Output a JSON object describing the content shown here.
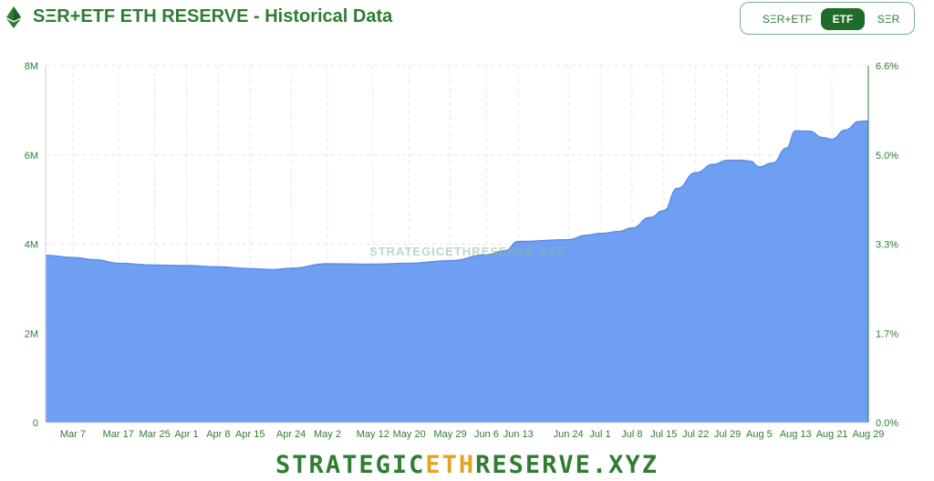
{
  "header": {
    "title": "SΞR+ETF ETH RESERVE - Historical Data",
    "icon": "ethereum-icon",
    "toggles": [
      {
        "label": "SΞR+ETF",
        "active": false
      },
      {
        "label": "ETF",
        "active": true
      },
      {
        "label": "SΞR",
        "active": false
      }
    ]
  },
  "colors": {
    "brand_green": "#2e7d32",
    "active_toggle": "#1f6b2a",
    "area_fill": "#6f9ff3",
    "area_line": "#5b8de8",
    "grid": "#e6e6e6",
    "footer_accent": "#e0a526"
  },
  "watermark": "STRATEGICETHRESERVE.XYZ",
  "footer": {
    "part1": "STRATEGIC",
    "part2": "ETH",
    "part3": "RESERVE.XYZ"
  },
  "chart_data": {
    "type": "area",
    "title": "",
    "x_tick_labels": [
      "Mar 7",
      "Mar 17",
      "Mar 25",
      "Apr 1",
      "Apr 8",
      "Apr 15",
      "Apr 24",
      "May 2",
      "May 12",
      "May 20",
      "May 29",
      "Jun 6",
      "Jun 13",
      "Jun 24",
      "Jul 1",
      "Jul 8",
      "Jul 15",
      "Jul 22",
      "Jul 29",
      "Aug 5",
      "Aug 13",
      "Aug 21",
      "Aug 29"
    ],
    "y_left": {
      "ticks": [
        "0",
        "2M",
        "4M",
        "6M",
        "8M"
      ],
      "range": [
        0,
        8000000
      ]
    },
    "y_right": {
      "ticks": [
        "0.0%",
        "1.7%",
        "3.3%",
        "5.0%",
        "6.6%"
      ],
      "range": [
        0,
        6.6
      ]
    },
    "grid": true,
    "series": [
      {
        "x": [
          "Mar 1",
          "Mar 7",
          "Mar 12",
          "Mar 17",
          "Mar 25",
          "Apr 1",
          "Apr 8",
          "Apr 15",
          "Apr 20",
          "Apr 24",
          "May 2",
          "May 12",
          "May 20",
          "May 29",
          "Jun 6",
          "Jun 10",
          "Jun 13",
          "Jun 24",
          "Jun 28",
          "Jul 1",
          "Jul 5",
          "Jul 8",
          "Jul 12",
          "Jul 15",
          "Jul 18",
          "Jul 22",
          "Jul 26",
          "Jul 29",
          "Aug 1",
          "Aug 3",
          "Aug 5",
          "Aug 8",
          "Aug 11",
          "Aug 13",
          "Aug 16",
          "Aug 19",
          "Aug 21",
          "Aug 24",
          "Aug 27",
          "Aug 29"
        ],
        "values": [
          3750000,
          3700000,
          3650000,
          3570000,
          3530000,
          3520000,
          3490000,
          3450000,
          3430000,
          3460000,
          3560000,
          3550000,
          3570000,
          3630000,
          3760000,
          3850000,
          4060000,
          4100000,
          4200000,
          4240000,
          4280000,
          4360000,
          4600000,
          4750000,
          5250000,
          5600000,
          5790000,
          5880000,
          5880000,
          5860000,
          5730000,
          5820000,
          6150000,
          6540000,
          6530000,
          6390000,
          6350000,
          6560000,
          6750000,
          6760000
        ]
      }
    ]
  }
}
